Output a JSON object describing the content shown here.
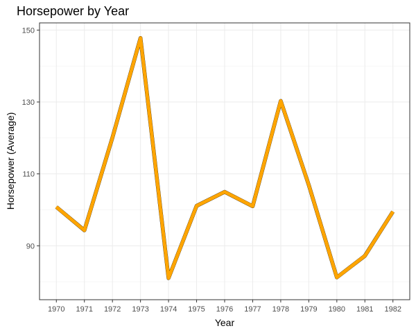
{
  "chart_data": {
    "type": "line",
    "title": "Horsepower by Year",
    "xlabel": "Year",
    "ylabel": "Horsepower (Average)",
    "categories": [
      "1970",
      "1971",
      "1972",
      "1973",
      "1974",
      "1975",
      "1976",
      "1977",
      "1978",
      "1979",
      "1980",
      "1981",
      "1982"
    ],
    "series": [
      {
        "values": [
          100.8,
          94.3,
          120.1,
          147.8,
          81.0,
          101.1,
          105.0,
          101.0,
          130.3,
          106.9,
          81.2,
          87.2,
          99.5
        ],
        "color": "#FFA500"
      }
    ],
    "ylim": [
      75,
      152
    ],
    "yticks": [
      90,
      110,
      130,
      150
    ],
    "grid": true,
    "legend": "none",
    "theme": "bw"
  }
}
